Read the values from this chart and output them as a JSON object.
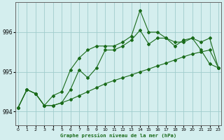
{
  "title": "Graphe pression niveau de la mer (hPa)",
  "bg_color": "#d4eeee",
  "grid_color": "#a0cccc",
  "line_color": "#1a6b1a",
  "x_ticks": [
    0,
    1,
    2,
    3,
    4,
    5,
    6,
    7,
    8,
    9,
    10,
    11,
    12,
    13,
    14,
    15,
    16,
    17,
    18,
    19,
    20,
    21,
    22,
    23
  ],
  "y_ticks": [
    994,
    995,
    996
  ],
  "ylim": [
    993.65,
    996.75
  ],
  "xlim": [
    -0.3,
    23.3
  ],
  "series1": [
    994.1,
    994.55,
    994.45,
    994.15,
    994.15,
    994.22,
    994.3,
    994.4,
    994.5,
    994.6,
    994.7,
    994.78,
    994.85,
    994.92,
    995.0,
    995.07,
    995.15,
    995.22,
    995.3,
    995.38,
    995.45,
    995.5,
    995.55,
    995.1
  ],
  "series2": [
    994.1,
    994.55,
    994.45,
    994.15,
    994.15,
    994.22,
    994.55,
    995.05,
    994.85,
    995.1,
    995.55,
    995.55,
    995.65,
    995.8,
    996.05,
    995.7,
    995.85,
    995.85,
    995.75,
    995.75,
    995.85,
    995.55,
    995.2,
    995.1
  ],
  "series3": [
    994.1,
    994.55,
    994.45,
    994.15,
    994.4,
    994.5,
    995.05,
    995.35,
    995.55,
    995.65,
    995.65,
    995.65,
    995.75,
    995.9,
    996.55,
    996.0,
    996.0,
    995.85,
    995.65,
    995.8,
    995.85,
    995.75,
    995.85,
    995.1
  ]
}
